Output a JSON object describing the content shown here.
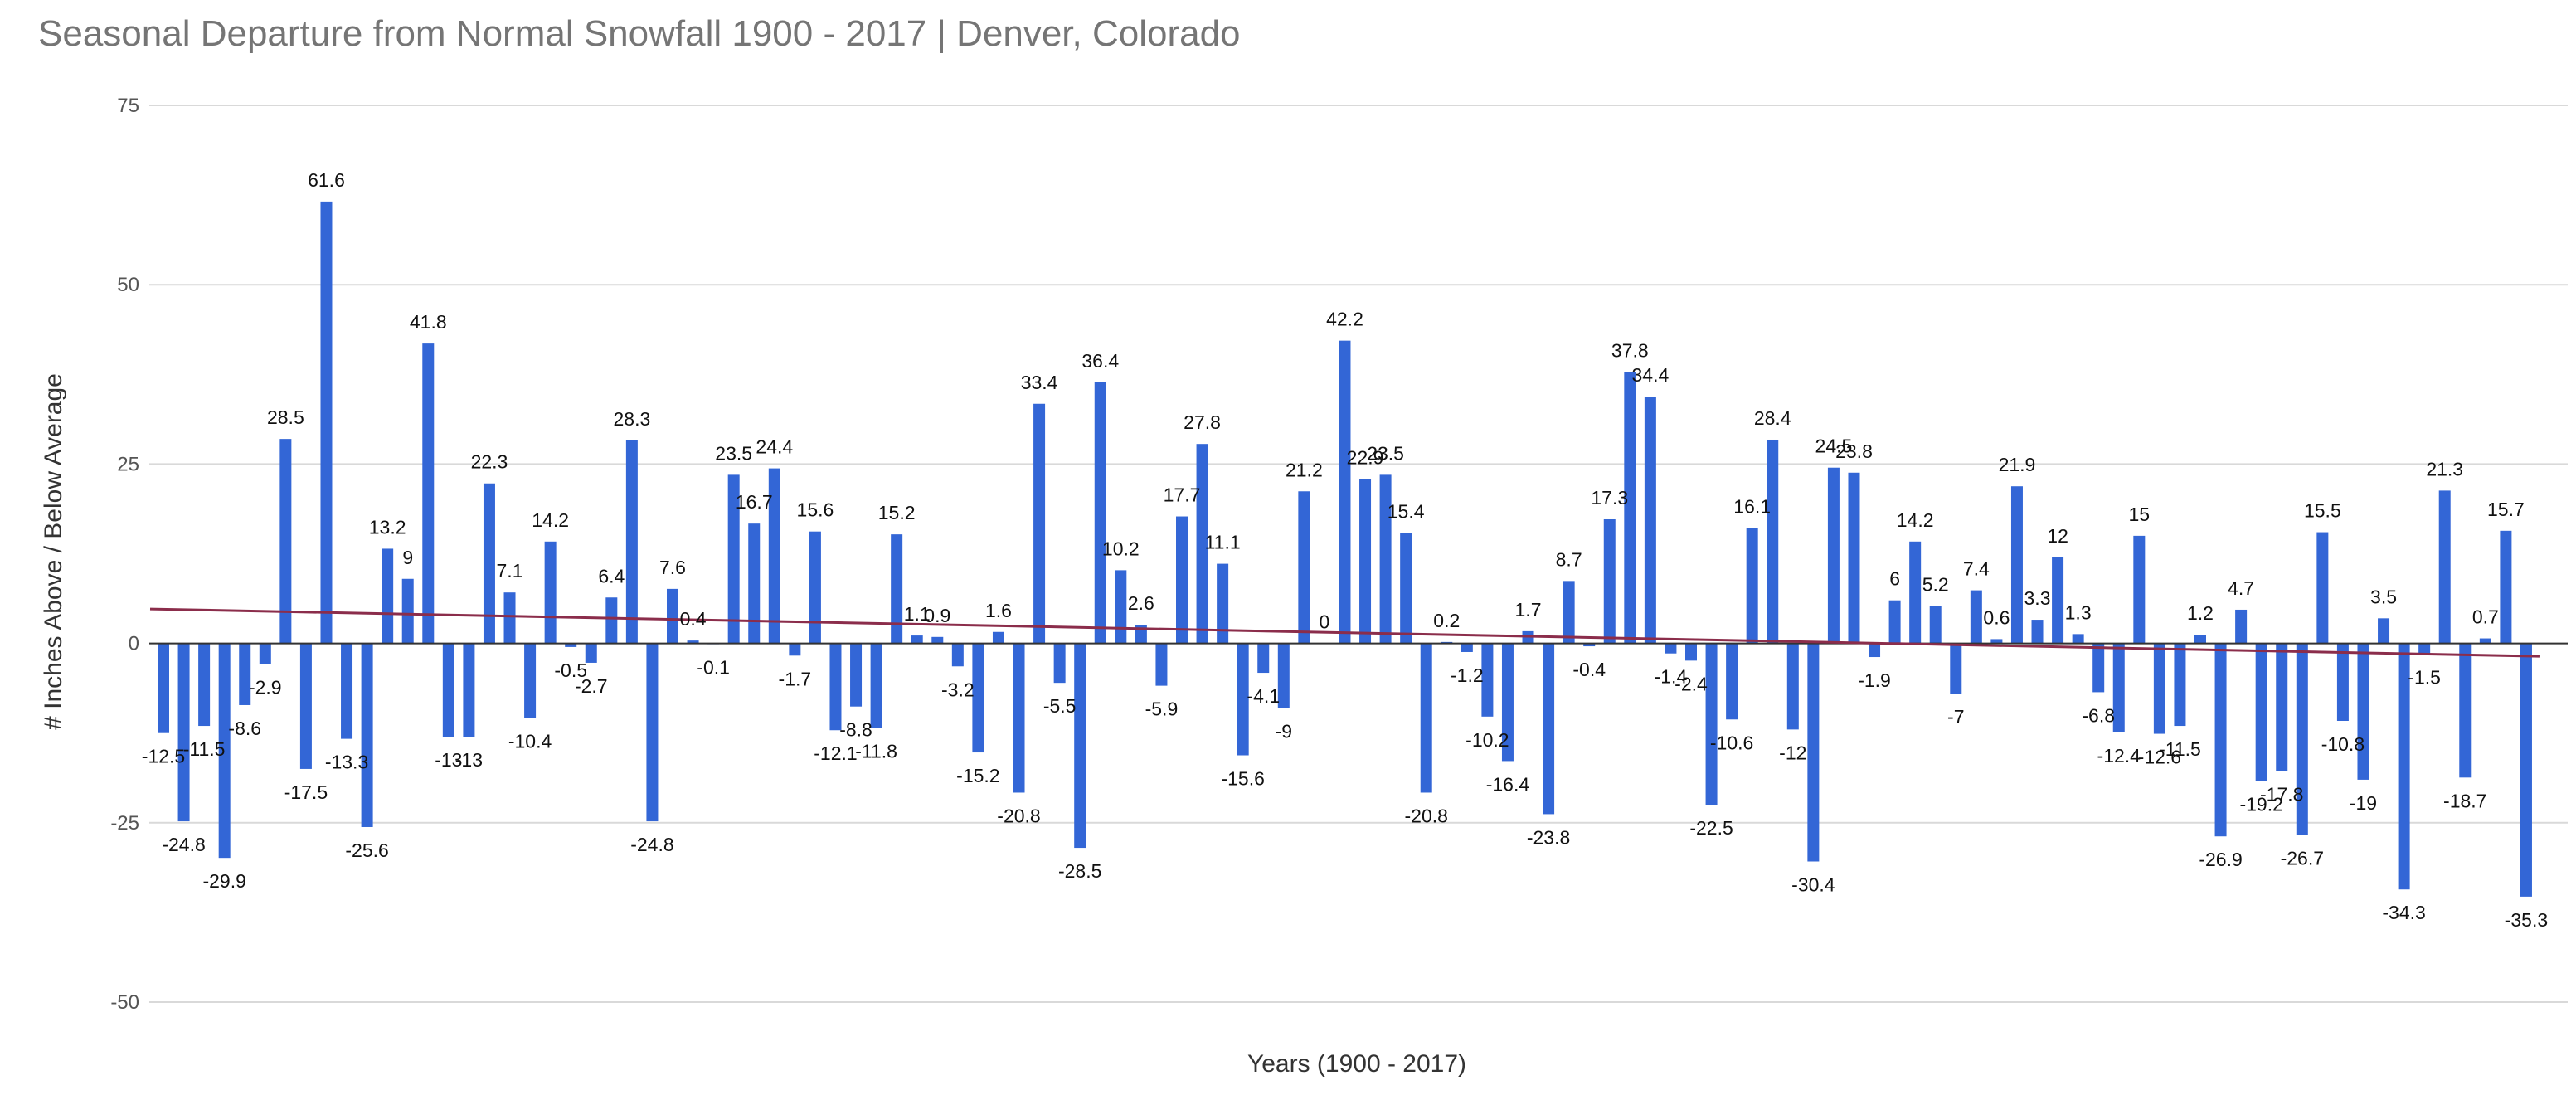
{
  "chart_data": {
    "type": "bar",
    "title": "Seasonal Departure from Normal Snowfall 1900 - 2017 | Denver, Colorado",
    "xlabel": "Years (1900 - 2017)",
    "ylabel": "# Inches Above / Below Average",
    "ylim": [
      -50,
      75
    ],
    "yticks": [
      -50,
      -25,
      0,
      25,
      50,
      75
    ],
    "x_range": [
      1900,
      2017
    ],
    "grid": true,
    "legend": "none",
    "trendline": {
      "start": 4.8,
      "end": -1.8
    },
    "values": [
      -12.5,
      -24.8,
      -11.5,
      -29.9,
      -8.6,
      -2.9,
      28.5,
      -17.5,
      61.6,
      -13.3,
      -25.6,
      13.2,
      9,
      41.8,
      -13,
      -13,
      22.3,
      7.1,
      -10.4,
      14.2,
      -0.5,
      -2.7,
      6.4,
      28.3,
      -24.8,
      7.6,
      0.4,
      -0.1,
      23.5,
      16.7,
      24.4,
      -1.7,
      15.6,
      -12.1,
      -8.8,
      -11.8,
      15.2,
      1.1,
      0.9,
      -3.2,
      -15.2,
      1.6,
      -20.8,
      33.4,
      -5.5,
      -28.5,
      36.4,
      10.2,
      2.6,
      -5.9,
      17.7,
      27.8,
      11.1,
      -15.6,
      -4.1,
      -9,
      21.2,
      0,
      42.2,
      22.9,
      23.5,
      15.4,
      -20.8,
      0.2,
      -1.2,
      -10.2,
      -16.4,
      1.7,
      -23.8,
      8.7,
      -0.4,
      17.3,
      37.8,
      34.4,
      -1.4,
      -2.4,
      -22.5,
      -10.6,
      16.1,
      28.4,
      -12,
      -30.4,
      24.5,
      23.8,
      -1.9,
      6,
      14.2,
      5.2,
      -7,
      7.4,
      0.6,
      21.9,
      3.3,
      12,
      1.3,
      -6.8,
      -12.4,
      15,
      -12.6,
      -11.5,
      1.2,
      -26.9,
      4.7,
      -19.2,
      -17.8,
      -26.7,
      15.5,
      -10.8,
      -19,
      3.5,
      -34.3,
      -1.5,
      21.3,
      -18.7,
      0.7,
      15.7,
      -35.3
    ],
    "colors": {
      "bar": "#3366d6",
      "trendline": "#8b2d4b",
      "grid": "#d9d9d9",
      "zero_line": "#333333"
    }
  }
}
